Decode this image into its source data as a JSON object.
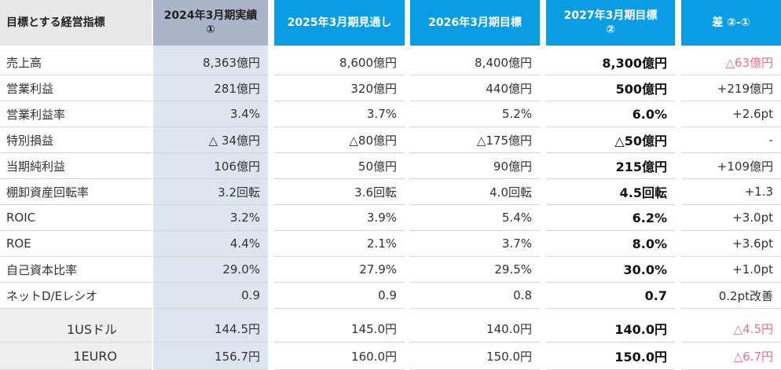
{
  "table": {
    "header": [
      "目標とする経営指標",
      [
        "2024年3月期実績",
        "①"
      ],
      [
        "2025年3月期見通し"
      ],
      [
        "2026年3月期目標"
      ],
      [
        "2027年3月期目標",
        "②"
      ],
      [
        "差 ②-①"
      ]
    ],
    "rows": [
      [
        "売上高",
        "8,363億円",
        "8,600億円",
        "8,400億円",
        "8,300億円",
        {
          "text": "△63億円",
          "color": "#e8728a"
        }
      ],
      [
        "営業利益",
        "281億円",
        "320億円",
        "440億円",
        "500億円",
        "+219億円"
      ],
      [
        "営業利益率",
        "3.4%",
        "3.7%",
        "5.2%",
        "6.0%",
        "+2.6pt"
      ],
      [
        "特別損益",
        "△ 34億円",
        "△80億円",
        "△175億円",
        "△50億円",
        "-"
      ],
      [
        "当期純利益",
        "106億円",
        "50億円",
        "90億円",
        "215億円",
        "+109億円"
      ],
      [
        "棚卸資産回転率",
        "3.2回転",
        "3.6回転",
        "4.0回転",
        "4.5回転",
        "+1.3"
      ],
      [
        "ROIC",
        "3.2%",
        "3.9%",
        "5.4%",
        "6.2%",
        "+3.0pt"
      ],
      [
        "ROE",
        "4.4%",
        "2.1%",
        "3.7%",
        "8.0%",
        "+3.6pt"
      ],
      [
        "自己資本比率",
        "29.0%",
        "27.9%",
        "29.5%",
        "30.0%",
        "+1.0pt"
      ],
      [
        "ネットD/Eレシオ",
        "0.9",
        "0.9",
        "0.8",
        "0.7",
        "0.2pt改善"
      ]
    ],
    "currency_rows": [
      [
        "1USドル",
        "144.5円",
        "145.0円",
        "140.0円",
        "140.0円",
        {
          "text": "△4.5円",
          "color": "#e8728a"
        }
      ],
      [
        "1EURO",
        "156.7円",
        "160.0円",
        "150.0円",
        "150.0円",
        {
          "text": "△6.7円",
          "color": "#e8728a"
        }
      ]
    ]
  }
}
